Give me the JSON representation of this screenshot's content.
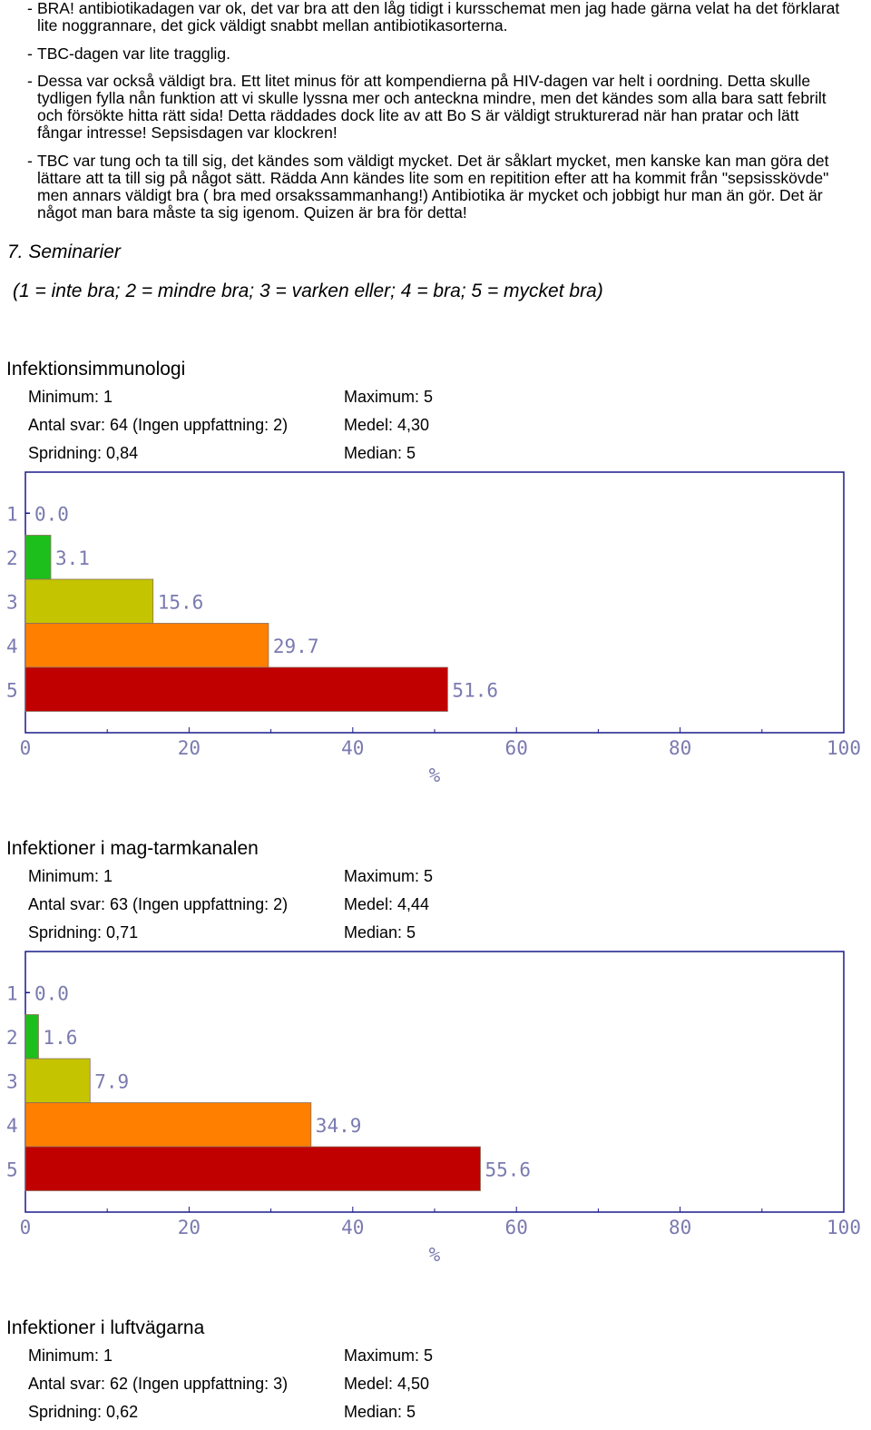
{
  "comments": [
    {
      "dash": "-",
      "text": "BRA! antibiotikadagen var ok, det var bra att den låg tidigt i kursschemat men jag hade gärna velat ha det förklarat lite noggrannare, det gick väldigt snabbt mellan antibiotikasorterna."
    },
    {
      "dash": "-",
      "text": "TBC-dagen var lite tragglig."
    },
    {
      "dash": "-",
      "text": "Dessa var också väldigt bra. Ett litet minus för att kompendierna på HIV-dagen var helt i oordning. Detta skulle tydligen fylla nån funktion att vi skulle lyssna mer och anteckna mindre, men det kändes som alla bara satt febrilt och försökte hitta rätt sida! Detta räddades dock lite av att Bo S är väldigt strukturerad när han pratar och lätt fångar intresse! Sepsisdagen var klockren!"
    },
    {
      "dash": "-",
      "text": "TBC var tung och ta till sig, det kändes som väldigt mycket. Det är såklart mycket, men kanske kan man göra det lättare att ta till sig på något sätt. Rädda Ann kändes lite som en repitition efter att ha kommit från \"sepsisskövde\" men annars väldigt bra ( bra med orsakssammanhang!) Antibiotika är mycket och jobbigt hur man än gör. Det är något man bara måste ta sig igenom. Quizen är bra för detta!"
    }
  ],
  "section": {
    "heading": "7. Seminarier",
    "scale_note": "(1 = inte bra; 2 = mindre bra; 3 = varken eller; 4 = bra; 5 = mycket bra)"
  },
  "blocks": [
    {
      "title": "Infektionsimmunologi",
      "minimum": "Minimum: 1",
      "maximum": "Maximum: 5",
      "antal": "Antal svar: 64 (Ingen uppfattning: 2)",
      "medel": "Medel: 4,30",
      "spridning": "Spridning: 0,84",
      "median": "Median: 5"
    },
    {
      "title": "Infektioner i mag-tarmkanalen",
      "minimum": "Minimum: 1",
      "maximum": "Maximum: 5",
      "antal": "Antal svar: 63 (Ingen uppfattning: 2)",
      "medel": "Medel: 4,44",
      "spridning": "Spridning: 0,71",
      "median": "Median: 5"
    },
    {
      "title": "Infektioner i luftvägarna",
      "minimum": "Minimum: 1",
      "maximum": "Maximum: 5",
      "antal": "Antal svar: 62 (Ingen uppfattning: 3)",
      "medel": "Medel: 4,50",
      "spridning": "Spridning: 0,62",
      "median": "Median: 5"
    }
  ],
  "colors": {
    "frame": "#1a1a8c",
    "label": "#7a7ab0",
    "bar_1": "#7ad05a",
    "bar_2": "#1cbf1c",
    "bar_3": "#c4c400",
    "bar_4": "#ff7f00",
    "bar_5": "#c00000"
  },
  "chart_data": [
    {
      "type": "bar",
      "orientation": "horizontal",
      "categories": [
        "1",
        "2",
        "3",
        "4",
        "5"
      ],
      "values": [
        0.0,
        3.1,
        15.6,
        29.7,
        51.6
      ],
      "value_labels": [
        "0.0",
        "3.1",
        "15.6",
        "29.7",
        "51.6"
      ],
      "xlim": [
        0,
        100
      ],
      "xticks": [
        "0",
        "20",
        "40",
        "60",
        "80",
        "100"
      ],
      "xlabel": "%"
    },
    {
      "type": "bar",
      "orientation": "horizontal",
      "categories": [
        "1",
        "2",
        "3",
        "4",
        "5"
      ],
      "values": [
        0.0,
        1.6,
        7.9,
        34.9,
        55.6
      ],
      "value_labels": [
        "0.0",
        "1.6",
        "7.9",
        "34.9",
        "55.6"
      ],
      "xlim": [
        0,
        100
      ],
      "xticks": [
        "0",
        "20",
        "40",
        "60",
        "80",
        "100"
      ],
      "xlabel": "%"
    }
  ]
}
